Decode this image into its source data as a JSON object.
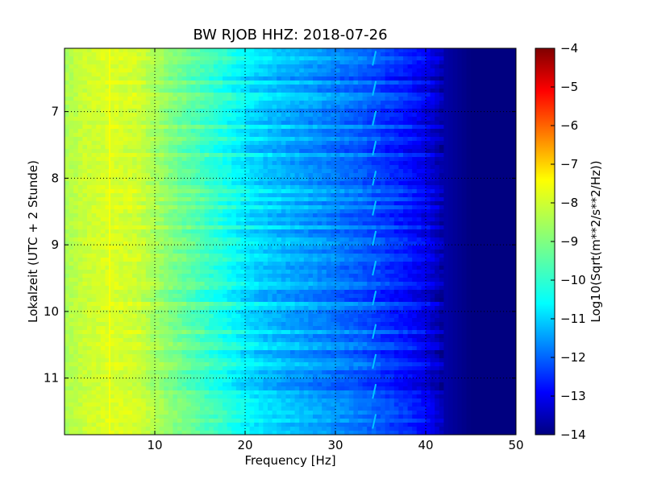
{
  "chart_data": {
    "type": "heatmap",
    "title": "BW RJOB HHZ: 2018-07-26",
    "xlabel": "Frequency [Hz]",
    "ylabel": "Lokalzeit (UTC + 2 Stunde)",
    "xlim": [
      0,
      50
    ],
    "ylim": [
      6.05,
      11.85
    ],
    "y_inverted": true,
    "x_ticks": [
      10,
      20,
      30,
      40,
      50
    ],
    "y_ticks": [
      7,
      8,
      9,
      10,
      11
    ],
    "grid": true,
    "colormap": "jet",
    "colorbar": {
      "label": "Log10(Sqrt(m**2/s**2/Hz))",
      "range": [
        -14,
        -4
      ],
      "ticks": [
        -4,
        -5,
        -6,
        -7,
        -8,
        -9,
        -10,
        -11,
        -12,
        -13,
        -14
      ]
    },
    "spectral_profile": {
      "frequency_hz": [
        0,
        2,
        5,
        8,
        10,
        12,
        15,
        18,
        20,
        22,
        25,
        28,
        30,
        33,
        35,
        38,
        40,
        42,
        45,
        50
      ],
      "log10_amplitude": [
        -8.6,
        -8.3,
        -8.1,
        -8.2,
        -8.6,
        -9.0,
        -9.5,
        -10.0,
        -10.4,
        -10.7,
        -11.0,
        -11.3,
        -11.5,
        -11.8,
        -12.1,
        -12.5,
        -12.9,
        -13.6,
        -14.0,
        -14.0
      ]
    },
    "features": [
      {
        "type": "line",
        "frequency_hz": 5,
        "from_hour": 6.05,
        "to_hour": 11.85,
        "log10_amplitude": -7.8
      },
      {
        "type": "hourly_ticks",
        "frequency_hz": 34.3,
        "log10_amplitude": -10.8,
        "hours": [
          6.2,
          6.65,
          7.1,
          7.55,
          8.0,
          8.45,
          8.9,
          9.35,
          9.8,
          10.3,
          10.75,
          11.2,
          11.65
        ]
      }
    ]
  }
}
